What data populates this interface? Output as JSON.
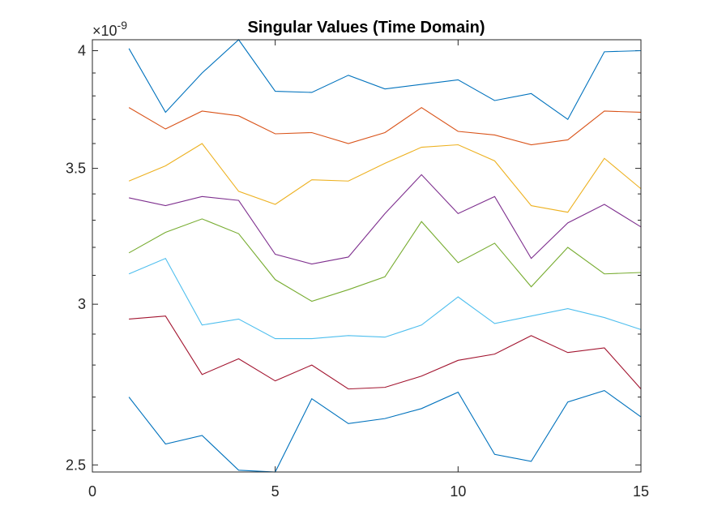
{
  "chart_data": {
    "type": "line",
    "title": "Singular Values (Time Domain)",
    "xlabel": "",
    "ylabel": "",
    "y_scale": "log",
    "y_exponent_label": "×10",
    "y_exponent_power": "-9",
    "xlim": [
      0,
      15
    ],
    "ylim": [
      2.48,
      4.05
    ],
    "x_ticks": [
      0,
      5,
      10,
      15
    ],
    "x_tick_labels": [
      "0",
      "5",
      "10",
      "15"
    ],
    "y_ticks": [
      2.5,
      3,
      3.5,
      4
    ],
    "y_tick_labels": [
      "2.5",
      "3",
      "3.5",
      "4"
    ],
    "y_minor_ticks": [
      2.6,
      2.7,
      2.8,
      2.9,
      3.1,
      3.2,
      3.3,
      3.4,
      3.6,
      3.7,
      3.8,
      3.9
    ],
    "grid": false,
    "box": true,
    "x": [
      1,
      2,
      3,
      4,
      5,
      6,
      7,
      8,
      9,
      10,
      11,
      12,
      13,
      14,
      15
    ],
    "series": [
      {
        "color": "#0072BD",
        "values": [
          4.01,
          3.73,
          3.9,
          4.05,
          3.82,
          3.815,
          3.89,
          3.83,
          3.85,
          3.87,
          3.78,
          3.81,
          3.7,
          3.995,
          4.0
        ]
      },
      {
        "color": "#D95319",
        "values": [
          3.75,
          3.66,
          3.735,
          3.715,
          3.64,
          3.645,
          3.6,
          3.645,
          3.75,
          3.65,
          3.635,
          3.595,
          3.615,
          3.735,
          3.73
        ]
      },
      {
        "color": "#EDB120",
        "values": [
          3.45,
          3.51,
          3.6,
          3.41,
          3.36,
          3.455,
          3.45,
          3.52,
          3.585,
          3.595,
          3.53,
          3.355,
          3.33,
          3.54,
          3.42
        ]
      },
      {
        "color": "#7E2F8E",
        "values": [
          3.385,
          3.355,
          3.39,
          3.375,
          3.175,
          3.14,
          3.165,
          3.325,
          3.475,
          3.325,
          3.39,
          3.16,
          3.29,
          3.36,
          3.275
        ]
      },
      {
        "color": "#77AC30",
        "values": [
          3.18,
          3.255,
          3.305,
          3.25,
          3.085,
          3.01,
          3.05,
          3.095,
          3.295,
          3.145,
          3.215,
          3.06,
          3.2,
          3.105,
          3.11
        ]
      },
      {
        "color": "#4DBEEE",
        "values": [
          3.105,
          3.16,
          2.93,
          2.95,
          2.885,
          2.885,
          2.895,
          2.89,
          2.93,
          3.025,
          2.935,
          2.96,
          2.985,
          2.955,
          2.915
        ]
      },
      {
        "color": "#A2142F",
        "values": [
          2.95,
          2.96,
          2.77,
          2.82,
          2.75,
          2.8,
          2.725,
          2.73,
          2.765,
          2.815,
          2.835,
          2.895,
          2.84,
          2.855,
          2.725
        ]
      },
      {
        "color": "#0072BD",
        "values": [
          2.7,
          2.56,
          2.585,
          2.485,
          2.48,
          2.695,
          2.62,
          2.635,
          2.665,
          2.715,
          2.53,
          2.51,
          2.685,
          2.72,
          2.64
        ]
      }
    ]
  }
}
